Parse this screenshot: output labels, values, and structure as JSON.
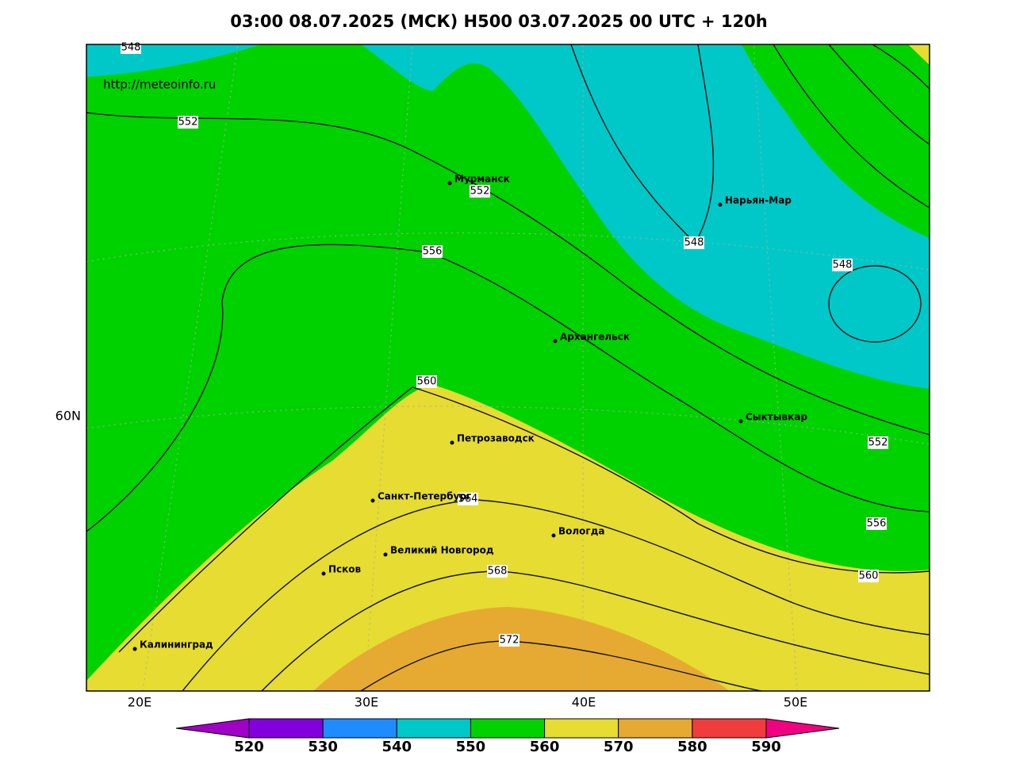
{
  "title": "03:00 08.07.2025 (МСК) H500  03.07.2025 00 UTC + 120h",
  "url": "http://meteoinfo.ru",
  "lat_labels": [
    "60N"
  ],
  "lon_labels": [
    "20E",
    "30E",
    "40E",
    "50E"
  ],
  "cities": [
    "Мурманск",
    "Нарьян-Мар",
    "Архангельск",
    "Сыктывкар",
    "Петрозаводск",
    "Санкт-Петербург",
    "Вологда",
    "Великий Новгород",
    "Псков",
    "Калининград"
  ],
  "contour_labels": [
    548,
    552,
    552,
    556,
    548,
    548,
    560,
    552,
    564,
    556,
    568,
    560,
    572
  ],
  "colorbar": {
    "levels": [
      520,
      530,
      540,
      550,
      560,
      570,
      580,
      590
    ],
    "colors": [
      "#a000c8",
      "#8200dc",
      "#1e8cff",
      "#00c8c8",
      "#00d200",
      "#e6dc32",
      "#e6aa32",
      "#f03c3c",
      "#f00082"
    ]
  }
}
